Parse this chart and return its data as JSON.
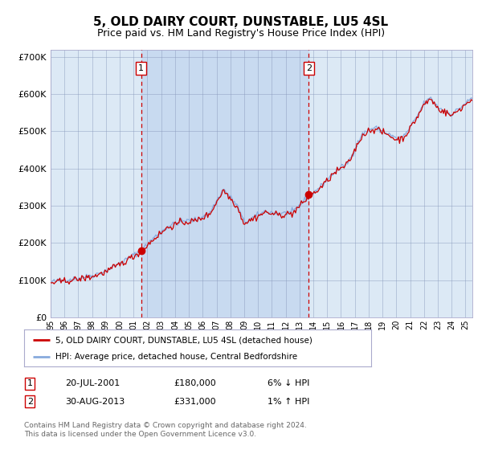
{
  "title": "5, OLD DAIRY COURT, DUNSTABLE, LU5 4SL",
  "subtitle": "Price paid vs. HM Land Registry's House Price Index (HPI)",
  "title_fontsize": 11,
  "subtitle_fontsize": 9,
  "background_color": "#ffffff",
  "plot_bg_color": "#dce9f5",
  "grid_color": "#8899bb",
  "ylabel_ticks": [
    "£0",
    "£100K",
    "£200K",
    "£300K",
    "£400K",
    "£500K",
    "£600K",
    "£700K"
  ],
  "ytick_values": [
    0,
    100000,
    200000,
    300000,
    400000,
    500000,
    600000,
    700000
  ],
  "ylim": [
    0,
    720000
  ],
  "xlim_start": 1995.0,
  "xlim_end": 2025.5,
  "sale1_x": 2001.55,
  "sale1_y": 180000,
  "sale1_label": "1",
  "sale2_x": 2013.66,
  "sale2_y": 331000,
  "sale2_label": "2",
  "hpi_line_color": "#88aadd",
  "price_line_color": "#cc0000",
  "marker_color": "#cc0000",
  "dashed_line_color": "#cc0000",
  "highlight_bg_color": "#c8daf0",
  "legend_label1": "5, OLD DAIRY COURT, DUNSTABLE, LU5 4SL (detached house)",
  "legend_label2": "HPI: Average price, detached house, Central Bedfordshire",
  "table_row1": [
    "1",
    "20-JUL-2001",
    "£180,000",
    "6% ↓ HPI"
  ],
  "table_row2": [
    "2",
    "30-AUG-2013",
    "£331,000",
    "1% ↑ HPI"
  ],
  "footnote": "Contains HM Land Registry data © Crown copyright and database right 2024.\nThis data is licensed under the Open Government Licence v3.0.",
  "xtick_years": [
    1995,
    1996,
    1997,
    1998,
    1999,
    2000,
    2001,
    2002,
    2003,
    2004,
    2005,
    2006,
    2007,
    2008,
    2009,
    2010,
    2011,
    2012,
    2013,
    2014,
    2015,
    2016,
    2017,
    2018,
    2019,
    2020,
    2021,
    2022,
    2023,
    2024,
    2025
  ],
  "xtick_labels": [
    "95",
    "96",
    "97",
    "98",
    "99",
    "00",
    "01",
    "02",
    "03",
    "04",
    "05",
    "06",
    "07",
    "08",
    "09",
    "10",
    "11",
    "12",
    "13",
    "14",
    "15",
    "16",
    "17",
    "18",
    "19",
    "20",
    "21",
    "22",
    "23",
    "24",
    "25"
  ]
}
